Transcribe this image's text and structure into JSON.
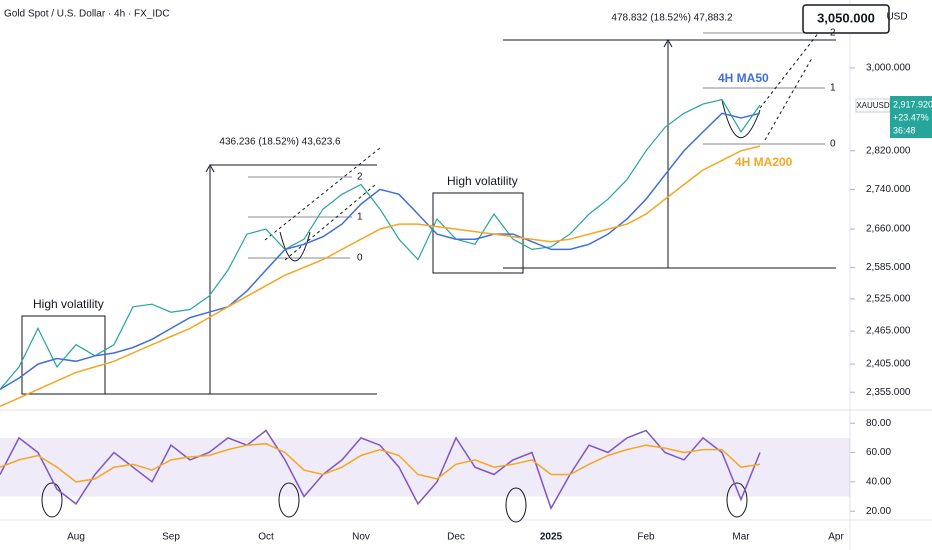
{
  "chart_data": [
    {
      "type": "line",
      "title": "Gold Spot / U.S. Dollar · 4h · FX_IDC",
      "y_unit": "USD",
      "log_scale": true,
      "grid": false,
      "categories": [
        null,
        null,
        null,
        null,
        "Aug",
        null,
        null,
        null,
        null,
        "Sep",
        null,
        null,
        null,
        null,
        "Oct",
        null,
        null,
        null,
        null,
        "Nov",
        null,
        null,
        null,
        null,
        "Dec",
        null,
        null,
        null,
        null,
        "2025",
        null,
        null,
        null,
        null,
        "Feb",
        null,
        null,
        null,
        null,
        "Mar",
        null,
        null,
        null,
        null,
        "Apr"
      ],
      "series": [
        {
          "name": "XAUUSD",
          "color": "#26a69a",
          "values": [
            2360,
            2400,
            2470,
            2400,
            2440,
            2420,
            2440,
            2510,
            2515,
            2500,
            2505,
            2530,
            2580,
            2650,
            2660,
            2620,
            2640,
            2700,
            2730,
            2750,
            2700,
            2640,
            2600,
            2680,
            2640,
            2630,
            2690,
            2640,
            2620,
            2625,
            2650,
            2690,
            2720,
            2760,
            2820,
            2870,
            2900,
            2920,
            2930,
            2860,
            2918,
            null,
            null,
            null,
            null
          ]
        },
        {
          "name": "4H MA50",
          "color": "#3f6fd8",
          "values": [
            2360,
            2380,
            2405,
            2415,
            2410,
            2420,
            2425,
            2435,
            2450,
            2470,
            2490,
            2500,
            2510,
            2540,
            2580,
            2620,
            2630,
            2645,
            2670,
            2710,
            2740,
            2730,
            2690,
            2650,
            2640,
            2640,
            2650,
            2650,
            2635,
            2620,
            2620,
            2630,
            2650,
            2680,
            2720,
            2770,
            2820,
            2860,
            2900,
            2890,
            2900,
            null,
            null,
            null,
            null
          ]
        },
        {
          "name": "4H MA200",
          "color": "#f5a623",
          "values": [
            2330,
            2345,
            2360,
            2375,
            2390,
            2400,
            2410,
            2425,
            2440,
            2455,
            2470,
            2490,
            2510,
            2530,
            2550,
            2570,
            2585,
            2600,
            2620,
            2640,
            2660,
            2670,
            2670,
            2665,
            2660,
            2655,
            2650,
            2645,
            2640,
            2635,
            2640,
            2650,
            2660,
            2670,
            2690,
            2720,
            2750,
            2780,
            2800,
            2820,
            2830,
            null,
            null,
            null,
            null
          ]
        }
      ],
      "ylim": [
        2324,
        3156
      ],
      "yticks": [
        {
          "value": 3000,
          "label": "3,000.000"
        },
        {
          "value": 2820,
          "label": "2,820.000"
        },
        {
          "value": 2740,
          "label": "2,740.000"
        },
        {
          "value": 2660,
          "label": "2,660.000"
        },
        {
          "value": 2585,
          "label": "2,585.000"
        },
        {
          "value": 2525,
          "label": "2,525.000"
        },
        {
          "value": 2465,
          "label": "2,465.000"
        },
        {
          "value": 2405,
          "label": "2,405.000"
        },
        {
          "value": 2355,
          "label": "2,355.000"
        }
      ],
      "annotations": [
        "High volatility",
        "High volatility",
        "436.236 (18.52%) 43,623.6",
        "478.832 (18.52%) 47,883.2",
        "3,050.000",
        "2",
        "1",
        "0",
        "2",
        "1",
        "0"
      ],
      "price_tag": [
        "XAUUSD",
        "2,917.920",
        "+23.47%",
        "36:48"
      ]
    },
    {
      "type": "line",
      "series": [
        {
          "color": "#7e57c2",
          "values": [
            45,
            70,
            60,
            35,
            25,
            45,
            60,
            50,
            40,
            65,
            55,
            60,
            70,
            65,
            75,
            55,
            30,
            45,
            55,
            70,
            65,
            50,
            25,
            40,
            70,
            50,
            45,
            55,
            60,
            22,
            45,
            65,
            60,
            70,
            75,
            60,
            55,
            70,
            60,
            28,
            60,
            null,
            null,
            null,
            null
          ]
        },
        {
          "color": "#f5a623",
          "values": [
            50,
            55,
            58,
            50,
            40,
            42,
            50,
            52,
            48,
            55,
            57,
            58,
            62,
            65,
            66,
            60,
            48,
            45,
            50,
            58,
            62,
            58,
            45,
            42,
            52,
            55,
            50,
            52,
            55,
            45,
            45,
            52,
            58,
            62,
            65,
            63,
            60,
            62,
            62,
            50,
            52,
            null,
            null,
            null,
            null
          ]
        }
      ],
      "ylim": [
        14,
        89
      ],
      "band": [
        30,
        70
      ],
      "yticks": [
        {
          "value": 80,
          "label": "80.00"
        },
        {
          "value": 60,
          "label": "60.00"
        },
        {
          "value": 40,
          "label": "40.00"
        },
        {
          "value": 20,
          "label": "20.00"
        }
      ]
    }
  ]
}
